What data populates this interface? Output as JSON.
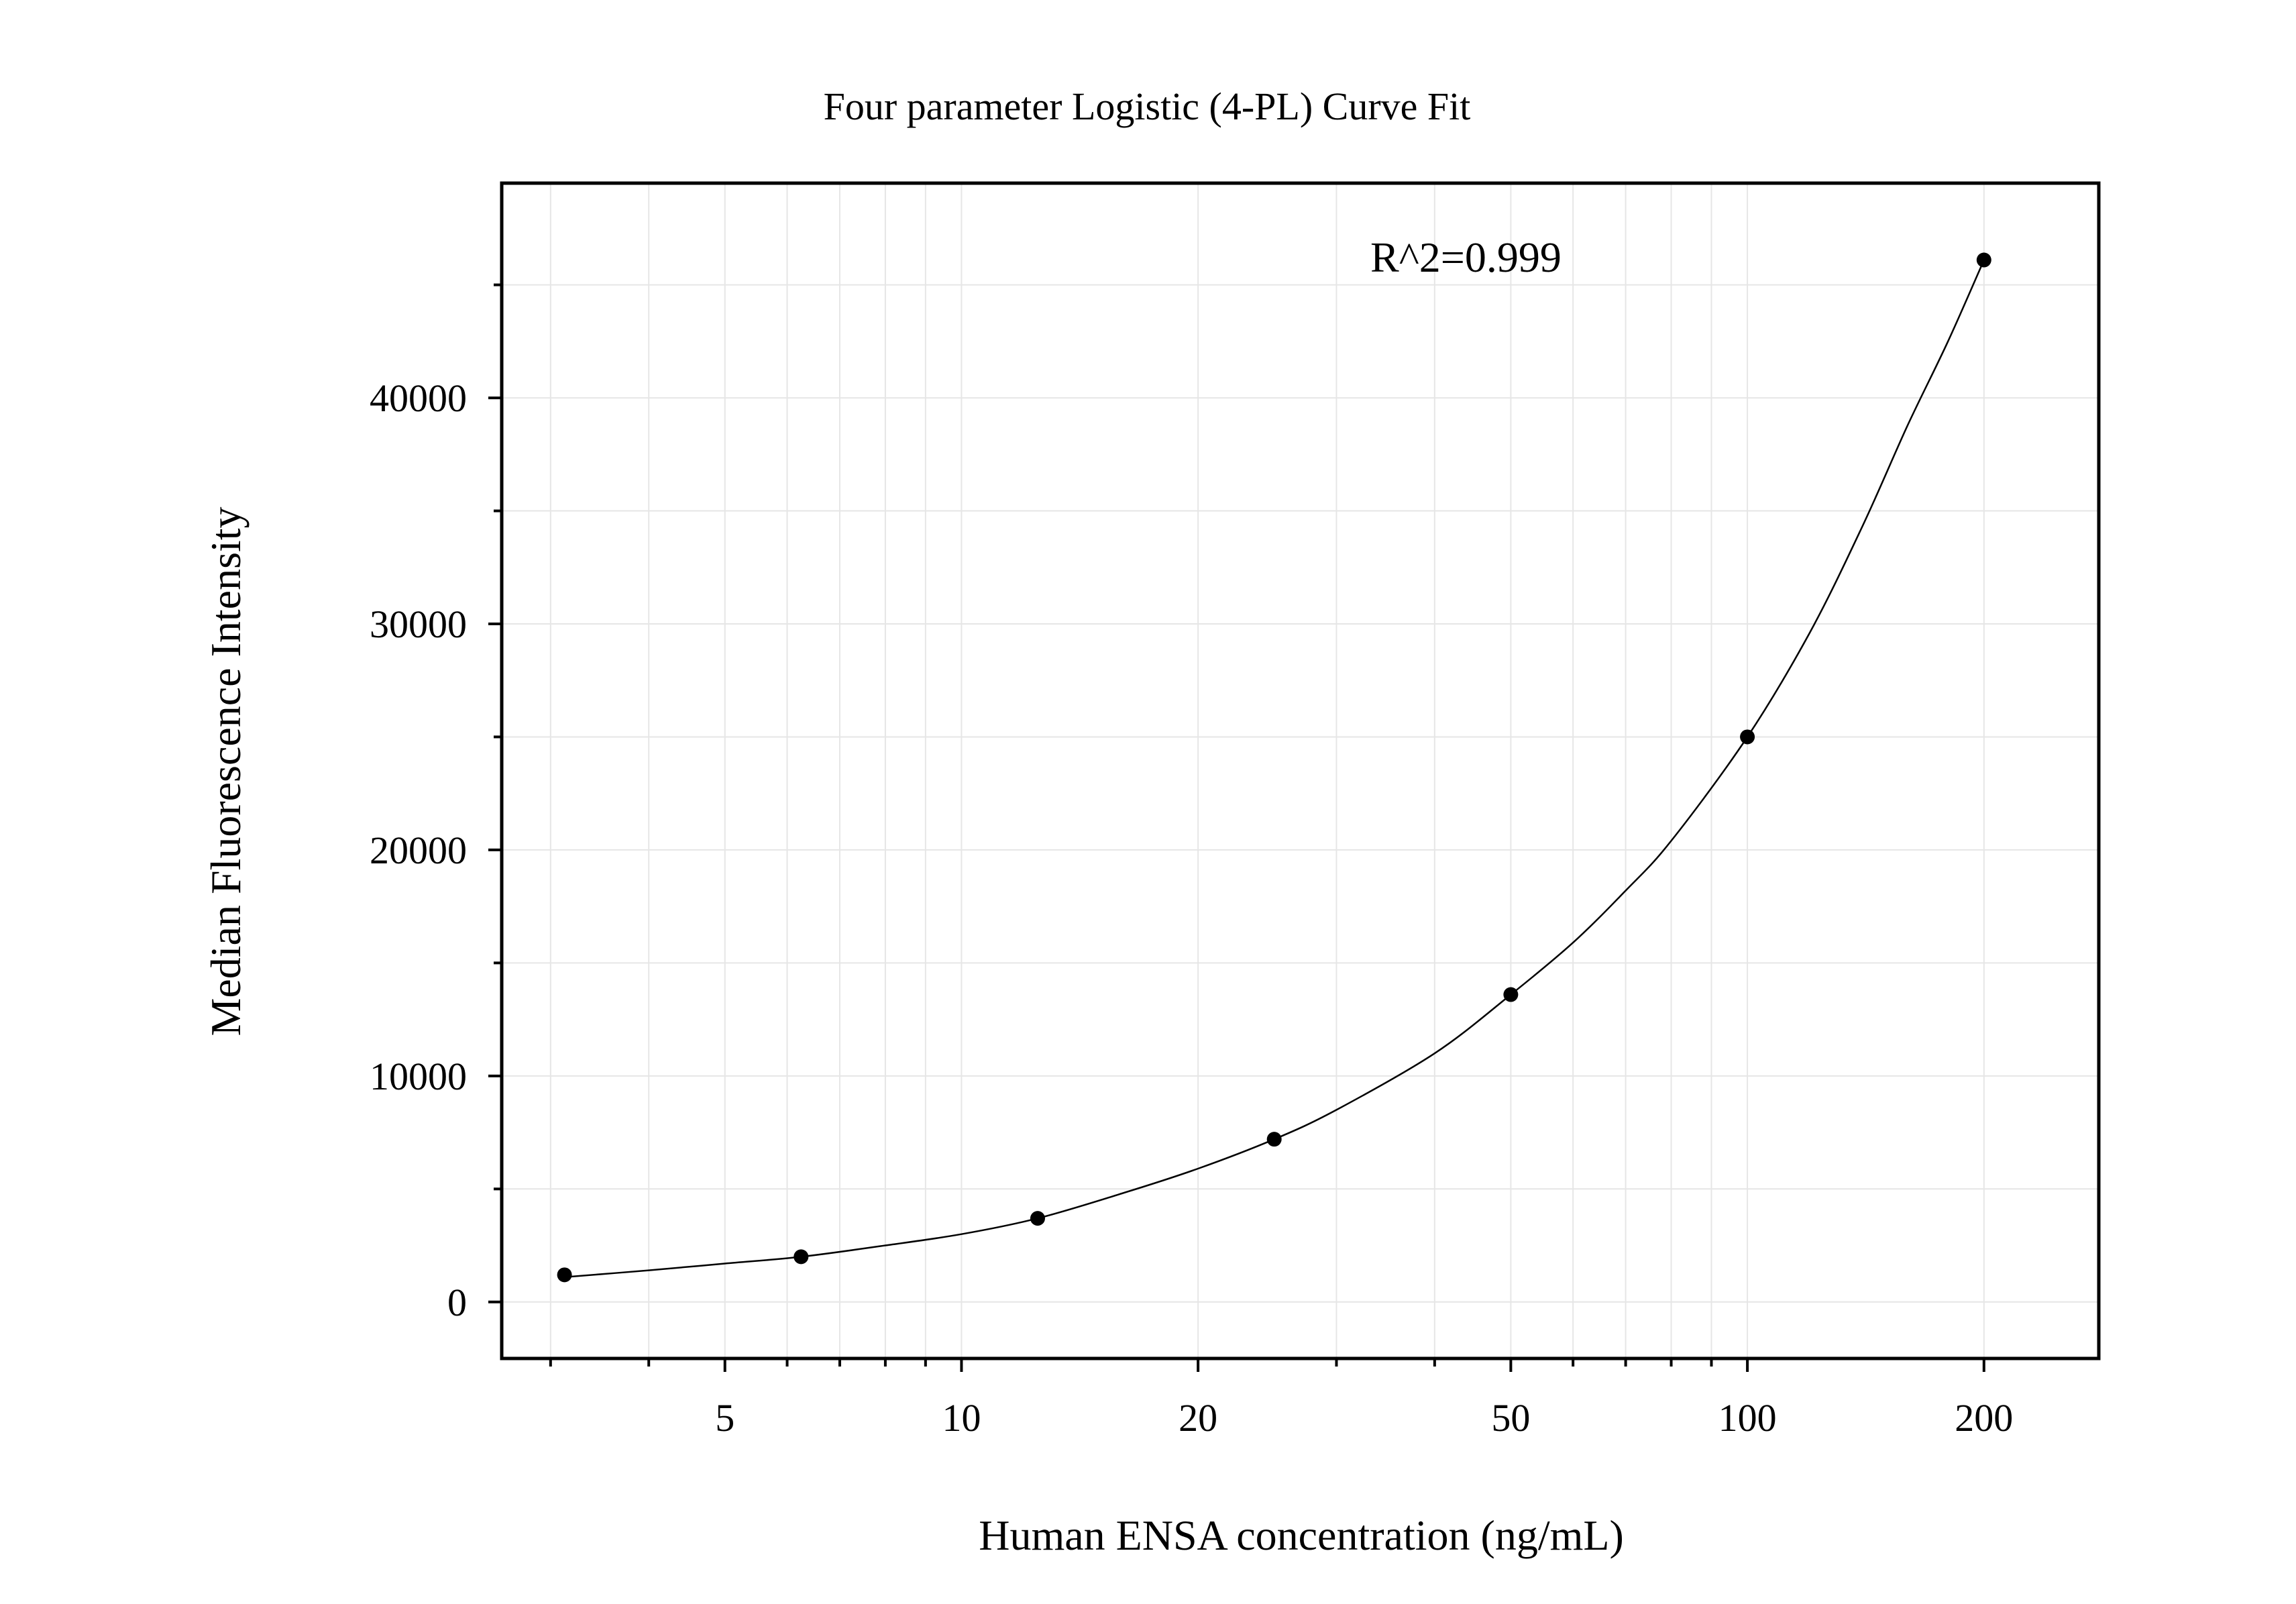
{
  "chart_data": {
    "type": "scatter",
    "title": "Four parameter Logistic (4-PL) Curve Fit",
    "xlabel": "Human ENSA concentration (ng/mL)",
    "ylabel": "Median Fluorescence Intensity",
    "x_scale": "log",
    "xlim": [
      2.6,
      280
    ],
    "ylim": [
      -2500,
      49500
    ],
    "x_ticks": [
      5,
      10,
      20,
      50,
      100,
      200
    ],
    "x_tick_labels": [
      "5",
      "10",
      "20",
      "50",
      "100",
      "200"
    ],
    "y_ticks": [
      0,
      10000,
      20000,
      30000,
      40000
    ],
    "y_tick_labels": [
      "0",
      "10000",
      "20000",
      "30000",
      "40000"
    ],
    "grid": true,
    "annotation": "R^2=0.999",
    "series": [
      {
        "x": [
          3.125,
          6.25,
          12.5,
          25,
          50,
          100,
          200
        ],
        "y": [
          1200,
          2000,
          3700,
          7200,
          13600,
          25000,
          46100
        ]
      }
    ],
    "fit": {
      "model": "4-PL",
      "x": [
        3.125,
        4,
        5,
        6.25,
        8,
        10,
        12.5,
        16,
        20,
        25,
        30,
        40,
        50,
        60,
        70,
        80,
        100,
        120,
        140,
        160,
        180,
        200
      ],
      "y": [
        1100,
        1400,
        1700,
        2000,
        2500,
        3000,
        3700,
        4800,
        5900,
        7200,
        8500,
        11000,
        13600,
        15900,
        18200,
        20400,
        25000,
        29600,
        34300,
        38800,
        42500,
        46100
      ]
    },
    "colors": {
      "points": "#000000",
      "line": "#000000",
      "grid": "#e6e6e6",
      "frame": "#000000"
    }
  }
}
